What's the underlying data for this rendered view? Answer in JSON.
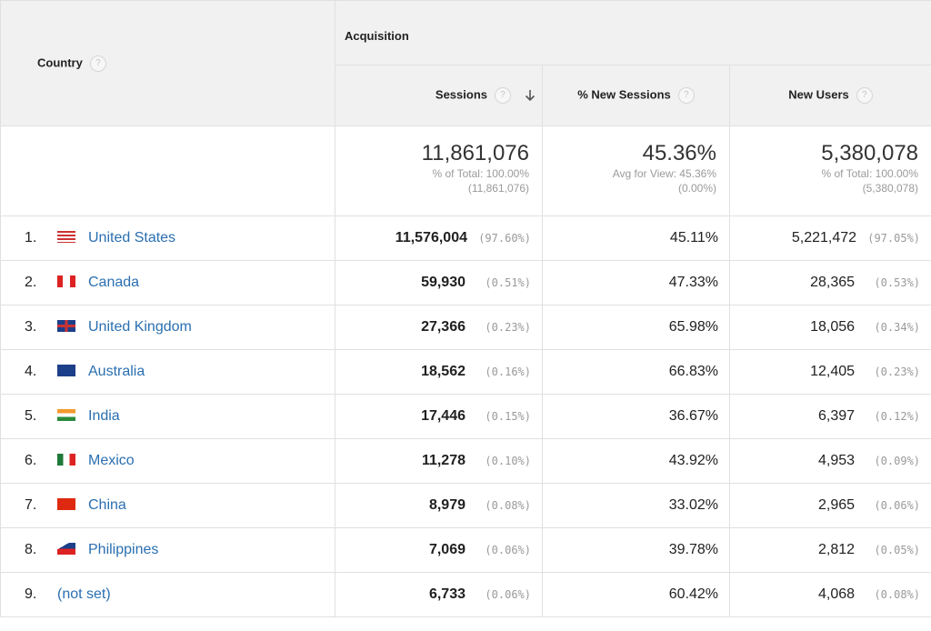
{
  "header": {
    "country": "Country",
    "group": "Acquisition",
    "columns": [
      "Sessions",
      "% New Sessions",
      "New Users"
    ],
    "help": "?"
  },
  "totals": [
    {
      "value": "11,861,076",
      "note": "% of Total: 100.00%",
      "sub": "(11,861,076)"
    },
    {
      "value": "45.36%",
      "note": "Avg for View: 45.36%",
      "sub": "(0.00%)"
    },
    {
      "value": "5,380,078",
      "note": "% of Total: 100.00%",
      "sub": "(5,380,078)"
    }
  ],
  "rows": [
    {
      "rank": "1.",
      "country": "United States",
      "sessions": "11,576,004",
      "sessions_pct": "(97.60%)",
      "new_sessions": "45.11%",
      "new_users": "5,221,472",
      "new_users_pct": "(97.05%)"
    },
    {
      "rank": "2.",
      "country": "Canada",
      "sessions": "59,930",
      "sessions_pct": "(0.51%)",
      "new_sessions": "47.33%",
      "new_users": "28,365",
      "new_users_pct": "(0.53%)"
    },
    {
      "rank": "3.",
      "country": "United Kingdom",
      "sessions": "27,366",
      "sessions_pct": "(0.23%)",
      "new_sessions": "65.98%",
      "new_users": "18,056",
      "new_users_pct": "(0.34%)"
    },
    {
      "rank": "4.",
      "country": "Australia",
      "sessions": "18,562",
      "sessions_pct": "(0.16%)",
      "new_sessions": "66.83%",
      "new_users": "12,405",
      "new_users_pct": "(0.23%)"
    },
    {
      "rank": "5.",
      "country": "India",
      "sessions": "17,446",
      "sessions_pct": "(0.15%)",
      "new_sessions": "36.67%",
      "new_users": "6,397",
      "new_users_pct": "(0.12%)"
    },
    {
      "rank": "6.",
      "country": "Mexico",
      "sessions": "11,278",
      "sessions_pct": "(0.10%)",
      "new_sessions": "43.92%",
      "new_users": "4,953",
      "new_users_pct": "(0.09%)"
    },
    {
      "rank": "7.",
      "country": "China",
      "sessions": "8,979",
      "sessions_pct": "(0.08%)",
      "new_sessions": "33.02%",
      "new_users": "2,965",
      "new_users_pct": "(0.06%)"
    },
    {
      "rank": "8.",
      "country": "Philippines",
      "sessions": "7,069",
      "sessions_pct": "(0.06%)",
      "new_sessions": "39.78%",
      "new_users": "2,812",
      "new_users_pct": "(0.05%)"
    },
    {
      "rank": "9.",
      "country": "(not set)",
      "sessions": "6,733",
      "sessions_pct": "(0.06%)",
      "new_sessions": "60.42%",
      "new_users": "4,068",
      "new_users_pct": "(0.08%)"
    }
  ]
}
